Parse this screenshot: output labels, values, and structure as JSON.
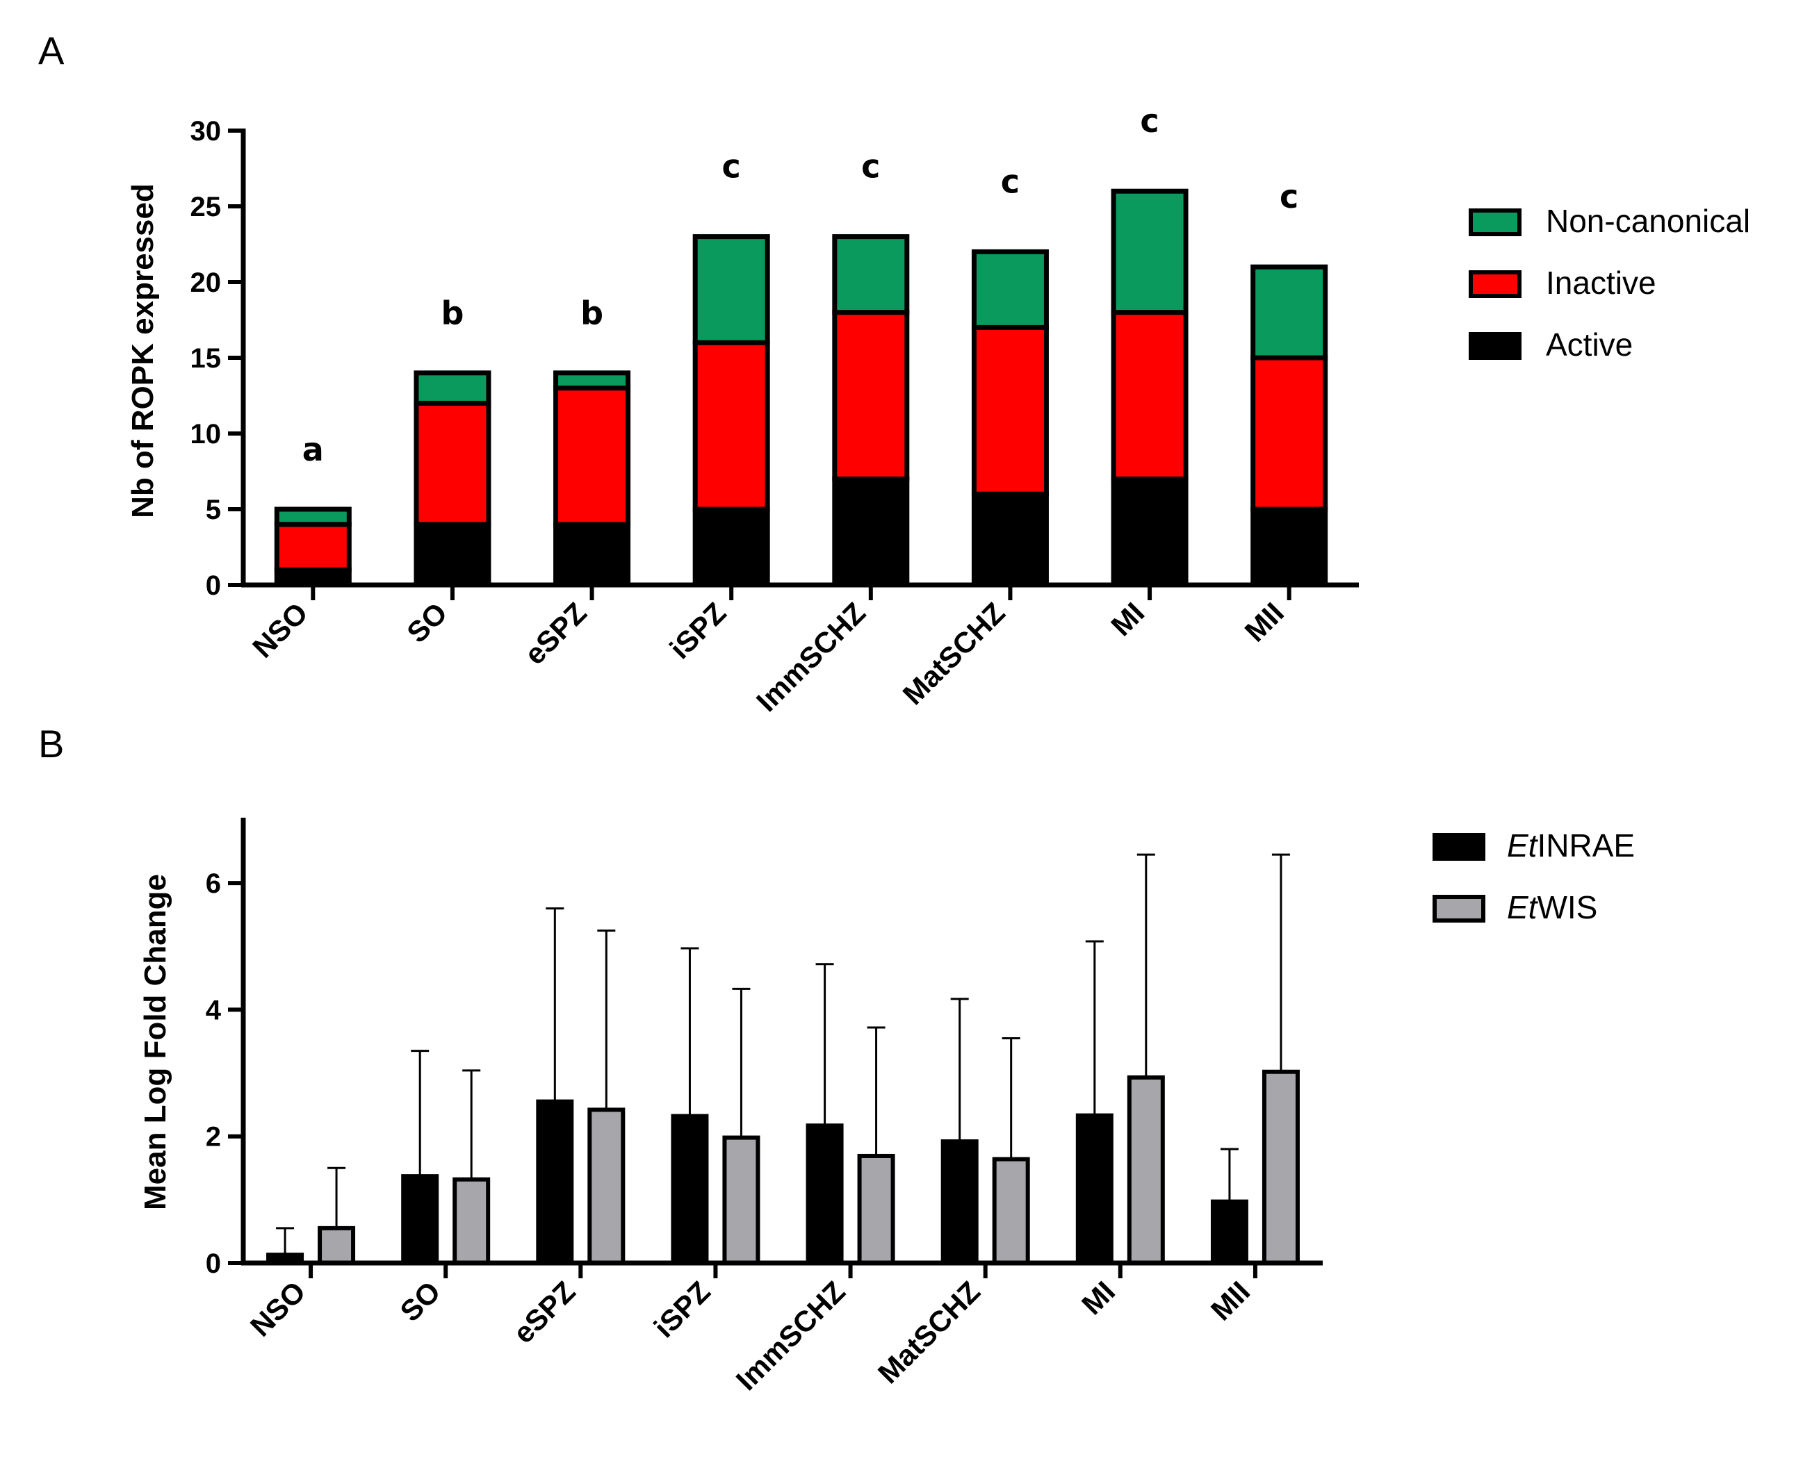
{
  "chart_data": [
    {
      "panel": "A",
      "type": "bar",
      "stacked": true,
      "ylabel": "Nb of ROPK expressed",
      "xlabel": "",
      "ylim": [
        0,
        30
      ],
      "yticks": [
        0,
        5,
        10,
        15,
        20,
        25,
        30
      ],
      "categories": [
        "NSO",
        "SO",
        "eSPZ",
        "iSPZ",
        "ImmSCHZ",
        "MatSCHZ",
        "MI",
        "MII"
      ],
      "series": [
        {
          "name": "Active",
          "color": "#000000",
          "values": [
            1,
            4,
            4,
            5,
            7,
            6,
            7,
            5
          ]
        },
        {
          "name": "Inactive",
          "color": "#ff0000",
          "values": [
            3,
            8,
            9,
            11,
            11,
            11,
            11,
            10
          ]
        },
        {
          "name": "Non-canonical",
          "color": "#0a9a5e",
          "values": [
            1,
            2,
            1,
            7,
            5,
            5,
            8,
            6
          ]
        }
      ],
      "annotations": [
        "a",
        "b",
        "b",
        "c",
        "c",
        "c",
        "c",
        "c"
      ],
      "legend": [
        "Non-canonical",
        "Inactive",
        "Active"
      ],
      "legend_position": "right"
    },
    {
      "panel": "B",
      "type": "bar",
      "stacked": false,
      "ylabel": "Mean Log Fold Change",
      "xlabel": "",
      "ylim": [
        0,
        7
      ],
      "yticks": [
        0,
        2,
        4,
        6
      ],
      "categories": [
        "NSO",
        "SO",
        "eSPZ",
        "iSPZ",
        "ImmSCHZ",
        "MatSCHZ",
        "MI",
        "MII"
      ],
      "series": [
        {
          "name": "EtINRAE",
          "legend_prefix": "Et",
          "legend_suffix": "INRAE",
          "color": "#000000",
          "values": [
            0.13,
            1.37,
            2.55,
            2.32,
            2.17,
            1.92,
            2.33,
            0.97
          ],
          "error_upper": [
            0.55,
            3.35,
            5.6,
            4.97,
            4.72,
            4.17,
            5.08,
            1.8
          ]
        },
        {
          "name": "EtWIS",
          "legend_prefix": "Et",
          "legend_suffix": "WIS",
          "color": "#a6a6ab",
          "values": [
            0.55,
            1.32,
            2.42,
            1.98,
            1.69,
            1.64,
            2.93,
            3.02
          ],
          "error_upper": [
            1.5,
            3.04,
            5.25,
            4.33,
            3.72,
            3.55,
            6.45,
            6.45
          ]
        }
      ],
      "legend_position": "right"
    }
  ],
  "panel_letters": {
    "a": "A",
    "b": "B"
  }
}
